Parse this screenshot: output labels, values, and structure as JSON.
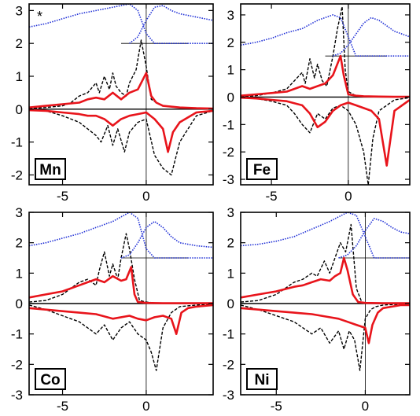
{
  "figure": {
    "colors": {
      "frame": "#000000",
      "up_spin_dashed": "#000000",
      "red_curve": "#e8141b",
      "blue_curve": "#1f2fd6",
      "blue_dotted": "#3c55ff"
    }
  },
  "chart_data": [
    {
      "type": "line",
      "panel_label": "Mn",
      "star_mark": "*",
      "xlim": [
        -7,
        4
      ],
      "ylim": [
        -2.3,
        3.2
      ],
      "xticks": [
        -5,
        0
      ],
      "yticks": [
        -2,
        -1,
        0,
        1,
        2,
        3
      ],
      "reference_line_y": 2.0,
      "series": [
        {
          "style": "black-dashed",
          "x": [
            -7,
            -6,
            -5,
            -4.5,
            -4,
            -3.5,
            -3,
            -2.8,
            -2.5,
            -2.2,
            -2,
            -1.8,
            -1.5,
            -1.2,
            -1,
            -0.6,
            -0.3,
            0,
            0.3,
            0.6,
            1,
            2,
            3,
            4
          ],
          "y": [
            0.02,
            0.05,
            0.1,
            0.2,
            0.4,
            0.5,
            0.8,
            0.5,
            1.0,
            0.6,
            1.1,
            0.7,
            0.5,
            0.4,
            0.8,
            1.2,
            2.1,
            1.3,
            0.3,
            0.2,
            0.1,
            0.05,
            0.03,
            0.02
          ]
        },
        {
          "style": "black-dashed",
          "x": [
            -7,
            -6,
            -5,
            -4,
            -3.5,
            -3,
            -2.7,
            -2.3,
            -2,
            -1.7,
            -1.3,
            -1,
            -0.5,
            0,
            0.5,
            1,
            1.5,
            2,
            3,
            4
          ],
          "y": [
            -0.02,
            -0.05,
            -0.2,
            -0.4,
            -0.6,
            -0.8,
            -1.0,
            -0.5,
            -1.1,
            -0.6,
            -1.3,
            -0.7,
            -0.4,
            -0.3,
            -1.4,
            -1.8,
            -2.0,
            -1.0,
            -0.2,
            -0.05
          ]
        },
        {
          "style": "red-solid",
          "x": [
            -7,
            -6,
            -5,
            -4,
            -3.5,
            -3,
            -2.5,
            -2,
            -1.5,
            -1,
            -0.5,
            0,
            0.3,
            0.6,
            1,
            2,
            3,
            4
          ],
          "y": [
            0.05,
            0.1,
            0.15,
            0.2,
            0.3,
            0.35,
            0.3,
            0.5,
            0.3,
            0.5,
            0.6,
            1.1,
            0.4,
            0.2,
            0.1,
            0.05,
            0.03,
            0.02
          ]
        },
        {
          "style": "red-solid",
          "x": [
            -7,
            -6,
            -5,
            -4,
            -3.5,
            -3,
            -2.5,
            -2,
            -1.5,
            -1,
            -0.5,
            0,
            0.5,
            1,
            1.3,
            1.6,
            2,
            3,
            4
          ],
          "y": [
            -0.03,
            -0.05,
            -0.1,
            -0.15,
            -0.2,
            -0.2,
            -0.3,
            -0.5,
            -0.3,
            -0.2,
            -0.15,
            -0.1,
            -0.3,
            -0.6,
            -1.3,
            -0.7,
            -0.4,
            -0.1,
            -0.05
          ]
        },
        {
          "style": "blue-dotted",
          "x": [
            -7,
            -6,
            -5,
            -4,
            -3,
            -2,
            -1,
            -0.5,
            0,
            0.5,
            1,
            2,
            3,
            4
          ],
          "y": [
            2.5,
            2.6,
            2.75,
            2.9,
            3.0,
            3.1,
            3.2,
            3.0,
            2.3,
            2.0,
            2.0,
            2.0,
            2.0,
            2.0
          ]
        },
        {
          "style": "blue-dotted",
          "x": [
            -1,
            -0.5,
            0,
            0.5,
            1,
            1.5,
            2,
            3,
            4
          ],
          "y": [
            2.0,
            2.2,
            2.7,
            3.1,
            3.15,
            3.0,
            2.9,
            2.8,
            2.7
          ]
        }
      ]
    },
    {
      "type": "line",
      "panel_label": "Fe",
      "xlim": [
        -7,
        4
      ],
      "ylim": [
        -3.2,
        3.4
      ],
      "xticks": [
        -5,
        0
      ],
      "yticks": [
        -3,
        -2,
        -1,
        0,
        1,
        2,
        3
      ],
      "reference_line_y": 1.5,
      "series": [
        {
          "style": "black-dashed",
          "x": [
            -7,
            -6,
            -5,
            -4,
            -3.5,
            -3,
            -2.8,
            -2.5,
            -2.2,
            -2,
            -1.7,
            -1.4,
            -1,
            -0.7,
            -0.4,
            -0.2,
            0,
            0.5,
            1,
            2,
            3,
            4
          ],
          "y": [
            0.02,
            0.05,
            0.15,
            0.3,
            0.6,
            0.9,
            0.5,
            1.4,
            0.7,
            1.2,
            0.6,
            0.4,
            1.5,
            2.5,
            3.3,
            1.0,
            0.2,
            0.05,
            0.02,
            0.01,
            0.01,
            0.01
          ]
        },
        {
          "style": "black-dashed",
          "x": [
            -7,
            -6,
            -5,
            -4,
            -3.5,
            -3,
            -2.5,
            -2,
            -1.5,
            -1,
            -0.5,
            0,
            0.5,
            1,
            1.3,
            1.6,
            2,
            3,
            4
          ],
          "y": [
            -0.02,
            -0.05,
            -0.15,
            -0.3,
            -0.6,
            -1.0,
            -1.3,
            -0.6,
            -0.8,
            -0.4,
            -0.3,
            -0.5,
            -1.0,
            -2.0,
            -3.2,
            -1.5,
            -0.5,
            -0.1,
            -0.02
          ]
        },
        {
          "style": "red-solid",
          "x": [
            -7,
            -6,
            -5,
            -4,
            -3.5,
            -3,
            -2.5,
            -2,
            -1.5,
            -1,
            -0.5,
            -0.3,
            0,
            0.5,
            1,
            2,
            3,
            4
          ],
          "y": [
            0.05,
            0.1,
            0.15,
            0.2,
            0.3,
            0.4,
            0.3,
            0.4,
            0.5,
            0.8,
            1.5,
            0.8,
            0.1,
            0.05,
            0.03,
            0.02,
            0.01,
            0.01
          ]
        },
        {
          "style": "red-solid",
          "x": [
            -7,
            -6,
            -5,
            -4,
            -3,
            -2.5,
            -2,
            -1.5,
            -1,
            -0.5,
            0,
            0.5,
            1,
            1.5,
            2,
            2.5,
            3,
            4
          ],
          "y": [
            -0.02,
            -0.05,
            -0.1,
            -0.15,
            -0.3,
            -0.6,
            -1.1,
            -0.9,
            -0.5,
            -0.3,
            -0.2,
            -0.3,
            -0.4,
            -0.5,
            -0.8,
            -2.5,
            -0.5,
            -0.1
          ]
        },
        {
          "style": "blue-dotted",
          "x": [
            -7,
            -6,
            -5,
            -4,
            -3,
            -2,
            -1,
            -0.5,
            0,
            0.5,
            1,
            2,
            3,
            4
          ],
          "y": [
            1.9,
            2.0,
            2.15,
            2.35,
            2.5,
            2.8,
            3.0,
            2.9,
            2.2,
            1.5,
            1.5,
            1.5,
            1.5,
            1.5
          ]
        },
        {
          "style": "blue-dotted",
          "x": [
            -1,
            -0.5,
            0,
            0.5,
            1,
            1.5,
            2,
            3,
            4
          ],
          "y": [
            1.5,
            1.6,
            1.9,
            2.3,
            2.7,
            2.9,
            2.8,
            2.4,
            2.2
          ]
        }
      ]
    },
    {
      "type": "line",
      "panel_label": "Co",
      "xlim": [
        -7,
        4
      ],
      "ylim": [
        -3.0,
        3.0
      ],
      "xticks": [
        -5,
        0
      ],
      "yticks": [
        -3,
        -2,
        -1,
        0,
        1,
        2,
        3
      ],
      "reference_line_y": 1.5,
      "series": [
        {
          "style": "black-dashed",
          "x": [
            -7,
            -6,
            -5,
            -4,
            -3.5,
            -3,
            -2.8,
            -2.5,
            -2.2,
            -2,
            -1.7,
            -1.5,
            -1.2,
            -1,
            -0.7,
            -0.4,
            0,
            0.5,
            1,
            2,
            3,
            4
          ],
          "y": [
            0.05,
            0.1,
            0.3,
            0.7,
            0.8,
            0.6,
            1.1,
            1.7,
            0.9,
            1.3,
            0.8,
            1.5,
            2.3,
            1.8,
            0.8,
            0.1,
            0.05,
            0.02,
            0.01,
            0.01,
            0.01,
            0.01
          ]
        },
        {
          "style": "black-dashed",
          "x": [
            -7,
            -6,
            -5,
            -4,
            -3.5,
            -3,
            -2.5,
            -2,
            -1.5,
            -1,
            -0.5,
            0,
            0.3,
            0.6,
            1,
            1.5,
            2,
            3,
            4
          ],
          "y": [
            -0.05,
            -0.2,
            -0.4,
            -0.6,
            -0.8,
            -1.0,
            -0.7,
            -1.2,
            -0.8,
            -0.6,
            -1.0,
            -1.2,
            -1.6,
            -2.2,
            -0.8,
            -0.3,
            -0.1,
            -0.05,
            -0.02
          ]
        },
        {
          "style": "red-solid",
          "x": [
            -7,
            -6,
            -5,
            -4,
            -3.5,
            -3,
            -2.5,
            -2,
            -1.5,
            -1.2,
            -0.9,
            -0.7,
            -0.5,
            0,
            1,
            2,
            3,
            4
          ],
          "y": [
            0.2,
            0.3,
            0.4,
            0.6,
            0.7,
            0.8,
            0.7,
            0.9,
            0.75,
            0.8,
            1.2,
            0.3,
            0.05,
            0.02,
            0.01,
            0.01,
            0.01,
            0.01
          ]
        },
        {
          "style": "red-solid",
          "x": [
            -7,
            -6,
            -5,
            -4,
            -3,
            -2,
            -1,
            -0.5,
            0,
            0.5,
            1,
            1.5,
            1.8,
            2.1,
            2.5,
            3,
            4
          ],
          "y": [
            -0.15,
            -0.2,
            -0.25,
            -0.3,
            -0.35,
            -0.5,
            -0.4,
            -0.5,
            -0.55,
            -0.45,
            -0.4,
            -0.5,
            -1.0,
            -0.3,
            -0.15,
            -0.1,
            -0.05
          ]
        },
        {
          "style": "blue-dotted",
          "x": [
            -7,
            -6,
            -5,
            -4,
            -3,
            -2,
            -1,
            -0.5,
            0,
            0.5,
            1,
            2,
            3,
            4
          ],
          "y": [
            1.9,
            2.0,
            2.15,
            2.3,
            2.5,
            2.7,
            3.0,
            2.8,
            1.8,
            1.5,
            1.5,
            1.5,
            1.5,
            1.5
          ]
        },
        {
          "style": "blue-dotted",
          "x": [
            -1.5,
            -1,
            -0.5,
            0,
            0.5,
            1,
            1.5,
            2,
            3,
            4
          ],
          "y": [
            1.5,
            1.6,
            2.0,
            2.5,
            2.7,
            2.5,
            2.2,
            2.0,
            1.9,
            1.85
          ]
        }
      ]
    },
    {
      "type": "line",
      "panel_label": "Ni",
      "xlim": [
        -7,
        2.5
      ],
      "ylim": [
        -3.0,
        3.0
      ],
      "xticks": [
        -5,
        0
      ],
      "yticks": [
        -3,
        -2,
        -1,
        0,
        1,
        2,
        3
      ],
      "reference_line_y": 1.5,
      "series": [
        {
          "style": "black-dashed",
          "x": [
            -7,
            -6,
            -5,
            -4.5,
            -4,
            -3.5,
            -3,
            -2.7,
            -2.3,
            -2,
            -1.7,
            -1.4,
            -1.1,
            -0.8,
            -0.5,
            -0.2,
            0,
            0.5,
            1,
            2,
            2.5
          ],
          "y": [
            0.05,
            0.1,
            0.3,
            0.5,
            0.7,
            0.8,
            1.0,
            0.9,
            1.4,
            1.0,
            1.5,
            2.0,
            1.7,
            2.6,
            0.5,
            0.05,
            0.02,
            0.01,
            0.01,
            0.01,
            0.01
          ]
        },
        {
          "style": "black-dashed",
          "x": [
            -7,
            -6,
            -5,
            -4,
            -3.5,
            -3,
            -2.5,
            -2,
            -1.5,
            -1.2,
            -0.9,
            -0.6,
            -0.3,
            0,
            0.3,
            0.6,
            1,
            2,
            2.5
          ],
          "y": [
            -0.05,
            -0.2,
            -0.4,
            -0.6,
            -0.8,
            -1.0,
            -0.8,
            -1.3,
            -0.9,
            -1.5,
            -0.9,
            -1.2,
            -2.2,
            -0.5,
            -0.2,
            -0.1,
            -0.05,
            -0.02,
            -0.01
          ]
        },
        {
          "style": "red-solid",
          "x": [
            -7,
            -6,
            -5,
            -4,
            -3.5,
            -3,
            -2.5,
            -2,
            -1.7,
            -1.4,
            -1.2,
            -1,
            -0.7,
            -0.4,
            0,
            1,
            2,
            2.5
          ],
          "y": [
            0.2,
            0.3,
            0.4,
            0.55,
            0.6,
            0.7,
            0.8,
            0.75,
            0.9,
            1.0,
            1.5,
            1.1,
            0.3,
            0.05,
            0.02,
            0.01,
            0.01,
            0.01
          ]
        },
        {
          "style": "red-solid",
          "x": [
            -7,
            -6,
            -5,
            -4,
            -3,
            -2,
            -1.5,
            -1,
            -0.5,
            0,
            0.2,
            0.4,
            0.7,
            1,
            1.5,
            2,
            2.5
          ],
          "y": [
            -0.15,
            -0.2,
            -0.25,
            -0.3,
            -0.35,
            -0.45,
            -0.5,
            -0.6,
            -0.7,
            -0.8,
            -1.3,
            -0.7,
            -0.3,
            -0.15,
            -0.1,
            -0.05,
            -0.05
          ]
        },
        {
          "style": "blue-dotted",
          "x": [
            -7,
            -6,
            -5,
            -4,
            -3,
            -2,
            -1,
            -0.5,
            0,
            0.5,
            1,
            2,
            2.5
          ],
          "y": [
            1.9,
            1.95,
            2.05,
            2.2,
            2.45,
            2.7,
            3.0,
            2.9,
            2.2,
            1.5,
            1.5,
            1.5,
            1.5
          ]
        },
        {
          "style": "blue-dotted",
          "x": [
            -1.5,
            -1,
            -0.5,
            0,
            0.5,
            1,
            1.5,
            2,
            2.5
          ],
          "y": [
            1.5,
            1.6,
            1.9,
            2.4,
            2.8,
            2.7,
            2.5,
            2.35,
            2.3
          ]
        }
      ]
    }
  ]
}
